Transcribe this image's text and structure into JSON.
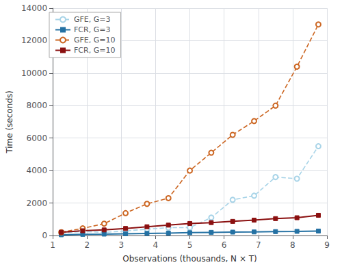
{
  "chart_data": {
    "type": "line",
    "x": [
      1.25,
      1.875,
      2.5,
      3.125,
      3.75,
      4.375,
      5.0,
      5.625,
      6.25,
      6.875,
      7.5,
      8.125,
      8.75
    ],
    "series": [
      {
        "name": "GFE, G=3",
        "color": "#a8d4e8",
        "marker": "open_circle",
        "line_style": "dashed",
        "values": [
          150,
          250,
          190,
          280,
          390,
          480,
          490,
          1100,
          2200,
          2450,
          3600,
          3500,
          5500
        ]
      },
      {
        "name": "FCR, G=3",
        "color": "#2471a3",
        "marker": "square",
        "line_style": "solid",
        "values": [
          45,
          70,
          85,
          105,
          130,
          150,
          175,
          195,
          210,
          220,
          240,
          255,
          275
        ]
      },
      {
        "name": "GFE, G=10",
        "color": "#cc6622",
        "marker": "open_circle",
        "line_style": "dashed",
        "values": [
          200,
          440,
          730,
          1380,
          1950,
          2300,
          4000,
          5100,
          6200,
          7050,
          8000,
          10400,
          13000
        ]
      },
      {
        "name": "FCR, G=10",
        "color": "#8b1010",
        "marker": "square",
        "line_style": "solid",
        "values": [
          200,
          295,
          345,
          435,
          540,
          640,
          740,
          795,
          870,
          945,
          1040,
          1095,
          1245
        ]
      }
    ],
    "xlabel": "Observations (thousands, N × T)",
    "ylabel": "Time (seconds)",
    "xlim": [
      1,
      9
    ],
    "ylim": [
      0,
      14000
    ],
    "xticks": [
      1,
      2,
      3,
      4,
      5,
      6,
      7,
      8,
      9
    ],
    "yticks": [
      0,
      2000,
      4000,
      6000,
      8000,
      10000,
      12000,
      14000
    ],
    "grid": true,
    "legend": "upper left"
  }
}
